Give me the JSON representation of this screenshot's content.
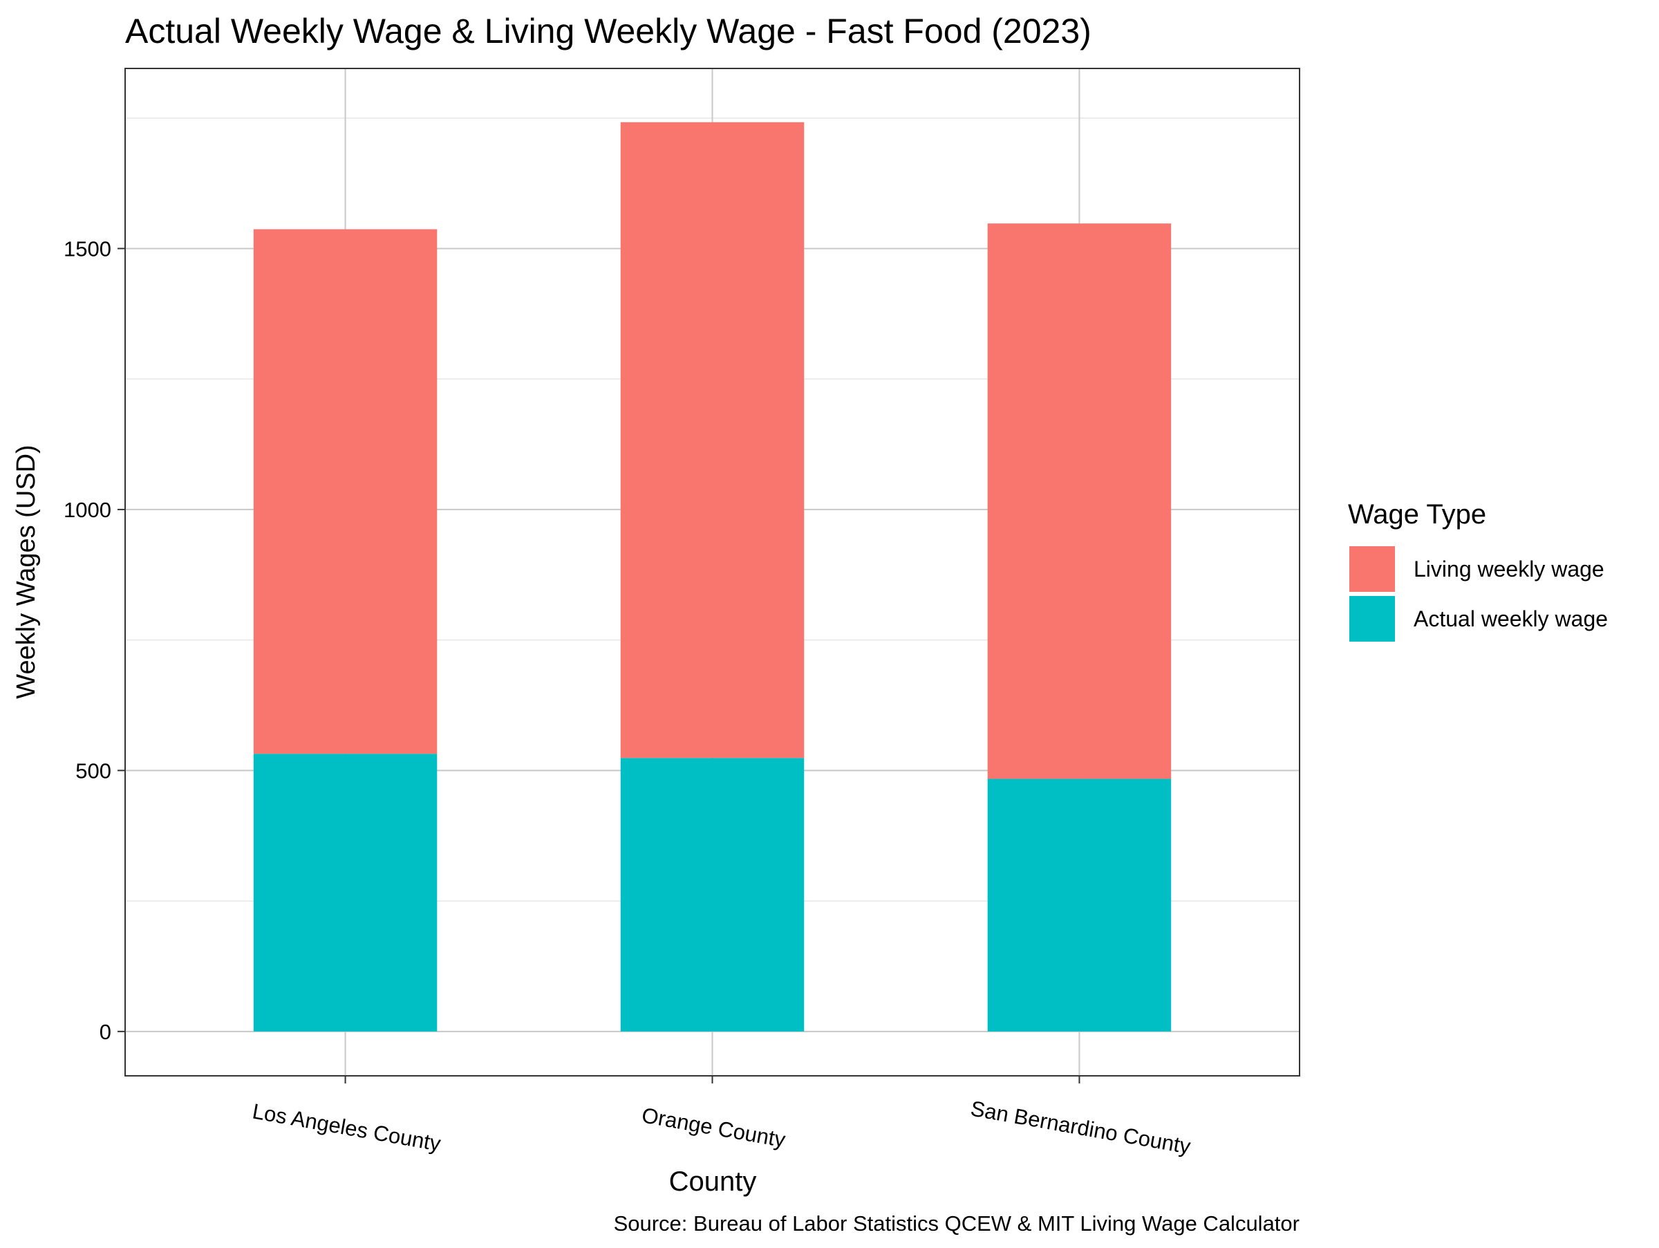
{
  "chart_data": {
    "type": "bar",
    "stacked": true,
    "title": "Actual Weekly Wage & Living Weekly Wage - Fast Food (2023)",
    "xlabel": "County",
    "ylabel": "Weekly Wages (USD)",
    "caption": "Source: Bureau of Labor Statistics QCEW & MIT Living Wage Calculator",
    "categories": [
      "Los Angeles County",
      "Orange County",
      "San Bernardino County"
    ],
    "series": [
      {
        "name": "Actual weekly wage",
        "color": "#00BFC4",
        "values": [
          532,
          524,
          484
        ]
      },
      {
        "name": "Living weekly wage",
        "color": "#F8766D",
        "values": [
          1005,
          1218,
          1064
        ]
      }
    ],
    "totals": [
      1537,
      1742,
      1548
    ],
    "ylim": [
      -85,
      1845
    ],
    "yticks": [
      0,
      500,
      1000,
      1500
    ],
    "grid": true,
    "legend": {
      "title": "Wage Type",
      "position": "right",
      "entries": [
        {
          "label": "Living weekly wage",
          "color": "#F8766D"
        },
        {
          "label": "Actual weekly wage",
          "color": "#00BFC4"
        }
      ]
    }
  }
}
